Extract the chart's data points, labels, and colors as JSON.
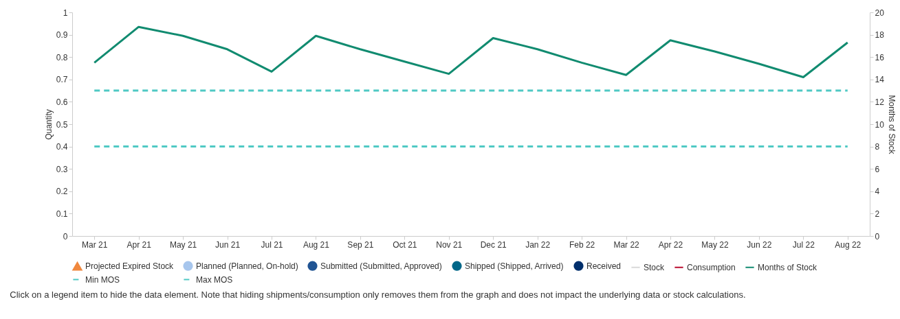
{
  "chart_data": {
    "type": "line",
    "categories": [
      "Mar 21",
      "Apr 21",
      "May 21",
      "Jun 21",
      "Jul 21",
      "Aug 21",
      "Sep 21",
      "Oct 21",
      "Nov 21",
      "Dec 21",
      "Jan 22",
      "Feb 22",
      "Mar 22",
      "Apr 22",
      "May 22",
      "Jun 22",
      "Jul 22",
      "Aug 22"
    ],
    "ylabel": "Quantity",
    "y2label": "Months of Stock",
    "ylim": [
      0,
      1
    ],
    "yticks": [
      0,
      0.1,
      0.2,
      0.3,
      0.4,
      0.5,
      0.6,
      0.7,
      0.8,
      0.9,
      1
    ],
    "y2lim": [
      0,
      20
    ],
    "y2ticks": [
      0,
      2,
      4,
      6,
      8,
      10,
      12,
      14,
      16,
      18,
      20
    ],
    "grid": false,
    "legend": "bottom",
    "series": [
      {
        "name": "Projected Expired Stock",
        "type": "scatter",
        "color": "#f0883e",
        "values": [
          null,
          null,
          null,
          null,
          null,
          null,
          null,
          null,
          null,
          null,
          null,
          null,
          null,
          null,
          null,
          null,
          null,
          null
        ]
      },
      {
        "name": "Planned (Planned, On-hold)",
        "type": "bar",
        "color": "#a7c6ed",
        "values": [
          null,
          null,
          null,
          null,
          null,
          null,
          null,
          null,
          null,
          null,
          null,
          null,
          null,
          null,
          null,
          null,
          null,
          null
        ]
      },
      {
        "name": "Submitted (Submitted, Approved)",
        "type": "bar",
        "color": "#205493",
        "values": [
          null,
          null,
          null,
          null,
          null,
          null,
          null,
          null,
          null,
          null,
          null,
          null,
          null,
          null,
          null,
          null,
          null,
          null
        ]
      },
      {
        "name": "Shipped (Shipped, Arrived)",
        "type": "bar",
        "color": "#006789",
        "values": [
          null,
          null,
          null,
          null,
          null,
          null,
          null,
          null,
          null,
          null,
          null,
          null,
          null,
          null,
          null,
          null,
          null,
          null
        ]
      },
      {
        "name": "Received",
        "type": "bar",
        "color": "#002f6c",
        "values": [
          null,
          null,
          null,
          null,
          null,
          null,
          null,
          null,
          null,
          null,
          null,
          null,
          null,
          null,
          null,
          null,
          null,
          null
        ]
      },
      {
        "name": "Stock",
        "type": "line",
        "color": "#d9d9d9",
        "values": [
          null,
          null,
          null,
          null,
          null,
          null,
          null,
          null,
          null,
          null,
          null,
          null,
          null,
          null,
          null,
          null,
          null,
          null
        ]
      },
      {
        "name": "Consumption",
        "type": "line",
        "color": "#ba0c2f",
        "values": [
          null,
          null,
          null,
          null,
          null,
          null,
          null,
          null,
          null,
          null,
          null,
          null,
          null,
          null,
          null,
          null,
          null,
          null
        ]
      },
      {
        "name": "Months of Stock",
        "type": "line",
        "axis": "y2",
        "color": "#118b70",
        "values": [
          15.5,
          18.7,
          17.9,
          16.7,
          14.7,
          17.9,
          16.7,
          15.6,
          14.5,
          17.7,
          16.7,
          15.5,
          14.4,
          17.5,
          16.5,
          15.4,
          14.2,
          17.3
        ]
      },
      {
        "name": "Min MOS",
        "type": "line",
        "axis": "y2",
        "line_style": "dashed",
        "color": "#4fc9c4",
        "values": [
          8,
          8,
          8,
          8,
          8,
          8,
          8,
          8,
          8,
          8,
          8,
          8,
          8,
          8,
          8,
          8,
          8,
          8
        ]
      },
      {
        "name": "Max MOS",
        "type": "line",
        "axis": "y2",
        "line_style": "dashed",
        "color": "#4fc9c4",
        "values": [
          13,
          13,
          13,
          13,
          13,
          13,
          13,
          13,
          13,
          13,
          13,
          13,
          13,
          13,
          13,
          13,
          13,
          13
        ]
      }
    ],
    "annotations": [
      "Click on a legend item to hide the data element. Note that hiding shipments/consumption only removes them from the graph and does not impact the underlying data or stock calculations."
    ]
  }
}
